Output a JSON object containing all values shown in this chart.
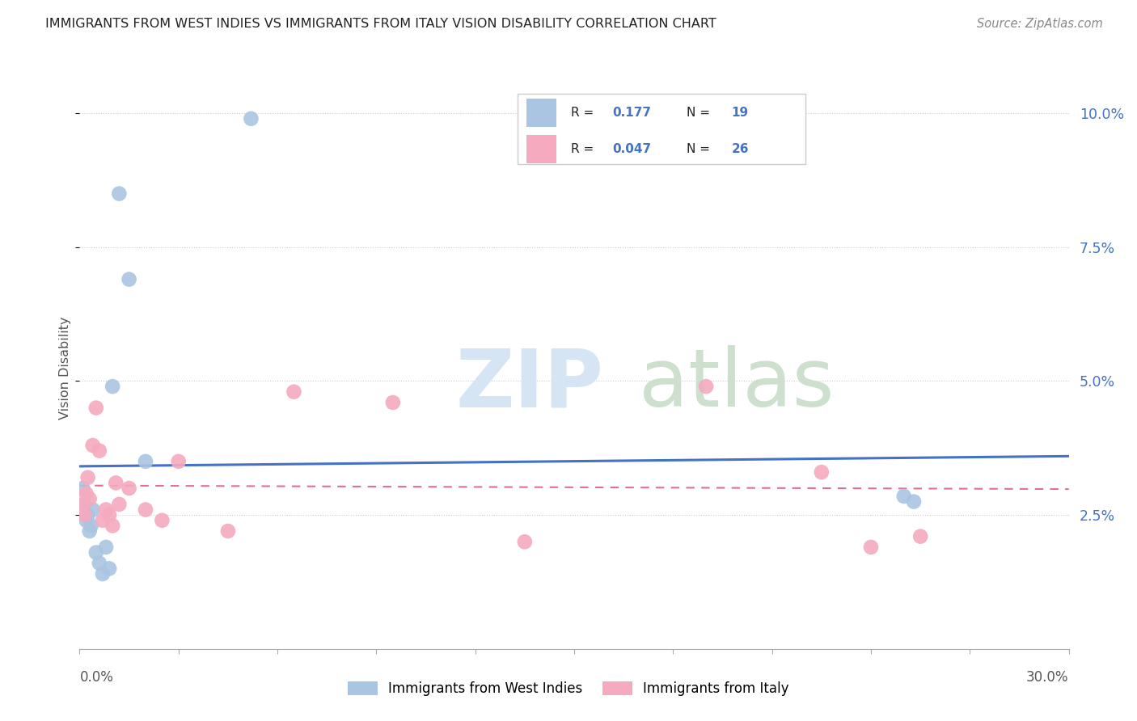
{
  "title": "IMMIGRANTS FROM WEST INDIES VS IMMIGRANTS FROM ITALY VISION DISABILITY CORRELATION CHART",
  "source": "Source: ZipAtlas.com",
  "ylabel": "Vision Disability",
  "xlim": [
    0.0,
    30.0
  ],
  "ylim": [
    0.0,
    10.5
  ],
  "yticks": [
    2.5,
    5.0,
    7.5,
    10.0
  ],
  "xticks": [
    0.0,
    3.0,
    6.0,
    9.0,
    12.0,
    15.0,
    18.0,
    21.0,
    24.0,
    27.0,
    30.0
  ],
  "west_indies_R": 0.177,
  "west_indies_N": 19,
  "italy_R": 0.047,
  "italy_N": 26,
  "west_indies_color": "#aac5e2",
  "italy_color": "#f5aabf",
  "west_indies_line_color": "#4472C4",
  "italy_line_color": "#E07090",
  "legend_label_1": "Immigrants from West Indies",
  "legend_label_2": "Immigrants from Italy",
  "west_indies_x": [
    0.1,
    0.2,
    0.3,
    0.4,
    0.5,
    0.6,
    0.7,
    0.8,
    0.9,
    1.0,
    1.2,
    1.5,
    2.0,
    5.2,
    25.0,
    25.3,
    0.15,
    0.25,
    0.35
  ],
  "west_indies_y": [
    3.0,
    2.4,
    2.2,
    2.6,
    1.8,
    1.6,
    1.4,
    1.9,
    1.5,
    4.9,
    8.5,
    6.9,
    3.5,
    9.9,
    2.85,
    2.75,
    2.7,
    2.5,
    2.3
  ],
  "italy_x": [
    0.1,
    0.15,
    0.2,
    0.25,
    0.3,
    0.4,
    0.5,
    0.6,
    0.7,
    0.8,
    0.9,
    1.0,
    1.1,
    1.2,
    1.5,
    2.0,
    2.5,
    3.0,
    4.5,
    6.5,
    9.5,
    13.5,
    19.0,
    22.5,
    24.0,
    25.5
  ],
  "italy_y": [
    2.7,
    2.5,
    2.9,
    3.2,
    2.8,
    3.8,
    4.5,
    3.7,
    2.4,
    2.6,
    2.5,
    2.3,
    3.1,
    2.7,
    3.0,
    2.6,
    2.4,
    3.5,
    2.2,
    4.8,
    4.6,
    2.0,
    4.9,
    3.3,
    1.9,
    2.1
  ],
  "watermark_zip_color": "#d6e5f3",
  "watermark_atlas_color": "#cde0cd"
}
